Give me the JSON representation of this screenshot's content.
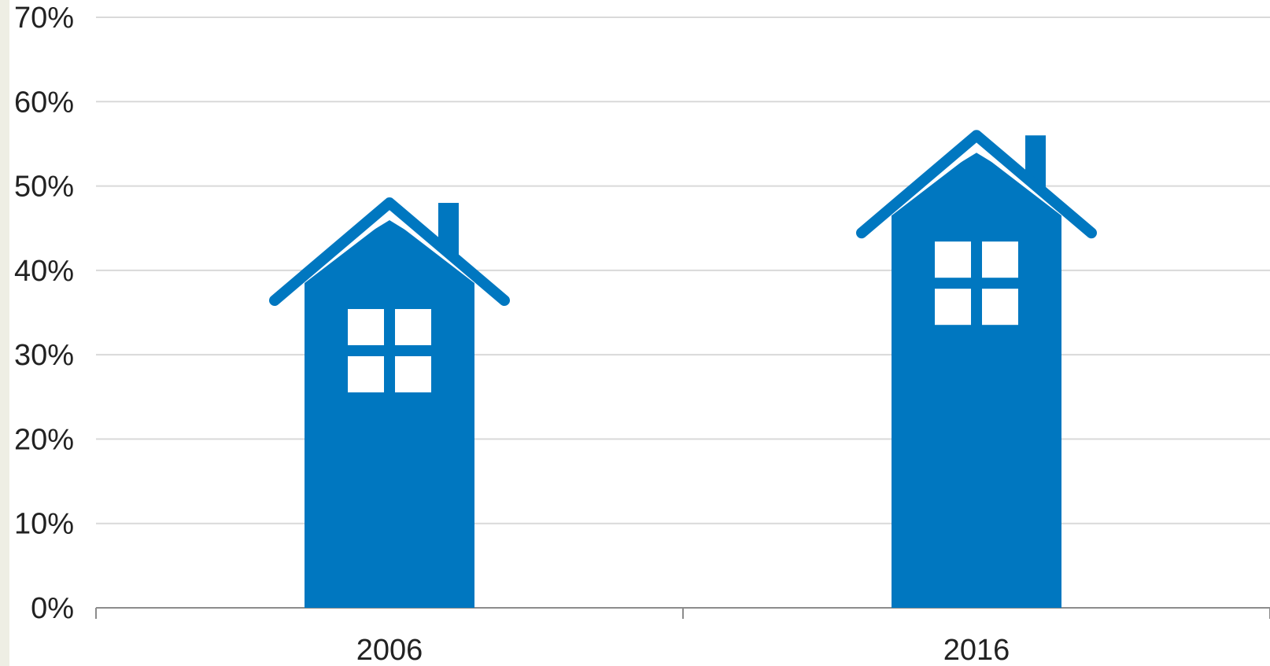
{
  "colors": {
    "bar": "#0077c0",
    "grid": "#d9d9d9",
    "axis": "#8c8c8c",
    "text": "#222222",
    "left_strip": "#eeeee4",
    "window": "#ffffff"
  },
  "chart_data": {
    "type": "bar",
    "title": "",
    "xlabel": "",
    "ylabel": "",
    "categories": [
      "2006",
      "2016"
    ],
    "values": [
      48,
      56
    ],
    "ylim": [
      0,
      70
    ],
    "yticks": [
      0,
      10,
      20,
      30,
      40,
      50,
      60,
      70
    ],
    "ytick_labels": [
      "0%",
      "10%",
      "20%",
      "30%",
      "40%",
      "50%",
      "60%",
      "70%"
    ],
    "grid": true,
    "legend": "none",
    "bar_style": "house-shaped bars with roof, chimney and window",
    "mark_icon": "house-icon"
  }
}
